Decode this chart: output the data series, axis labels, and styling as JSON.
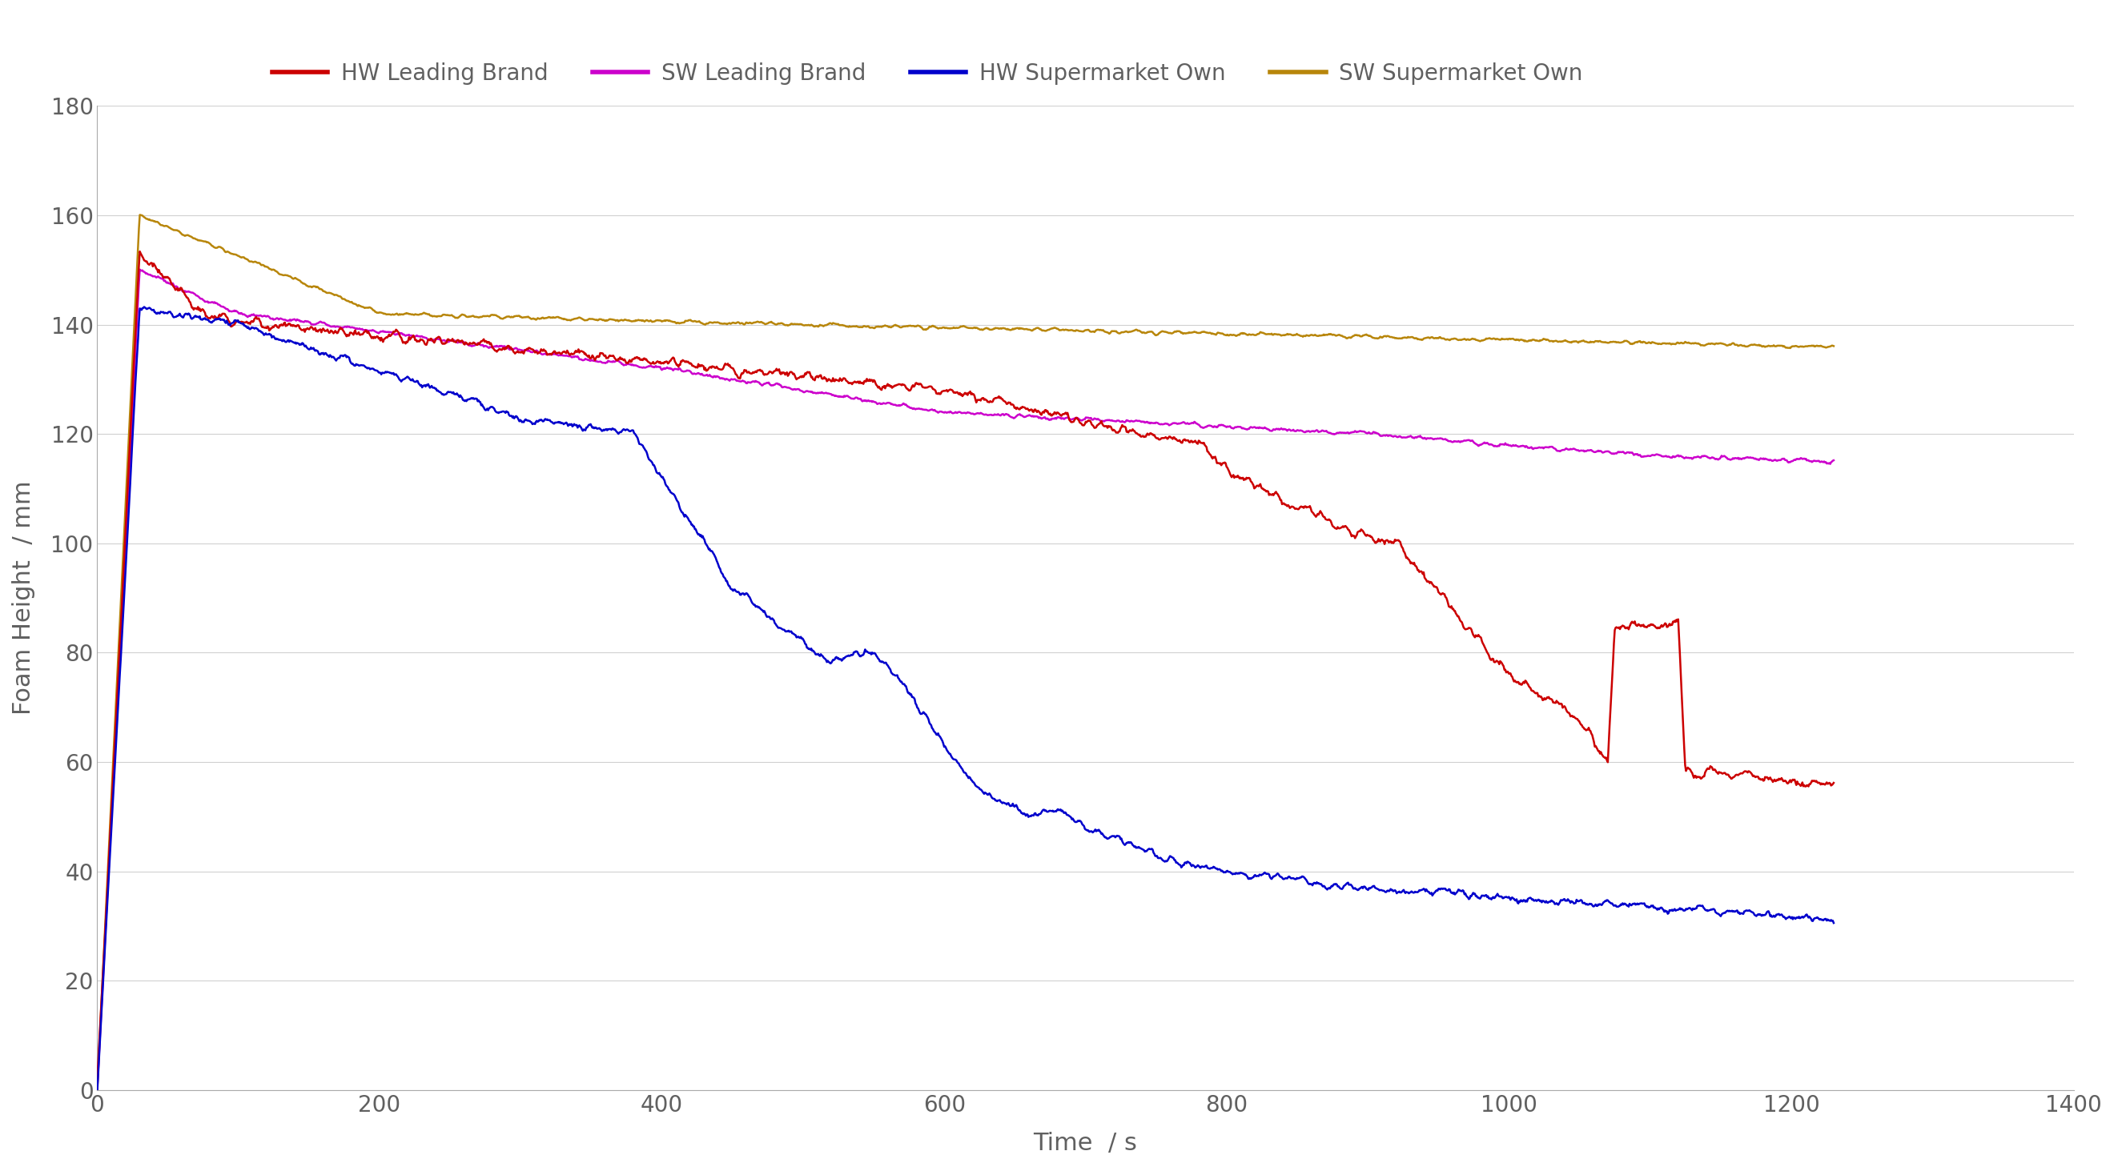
{
  "title": "",
  "xlabel": "Time  / s",
  "ylabel": "Foam Height  / mm",
  "xlim": [
    0,
    1400
  ],
  "ylim": [
    0,
    180
  ],
  "xticks": [
    0,
    200,
    400,
    600,
    800,
    1000,
    1200,
    1400
  ],
  "yticks": [
    0,
    20,
    40,
    60,
    80,
    100,
    120,
    140,
    160,
    180
  ],
  "background_color": "#ffffff",
  "grid_color": "#d0d0d0",
  "legend": [
    {
      "label": "HW Leading Brand",
      "color": "#cc0000"
    },
    {
      "label": "SW Leading Brand",
      "color": "#cc00cc"
    },
    {
      "label": "HW Supermarket Own",
      "color": "#0000cc"
    },
    {
      "label": "SW Supermarket Own",
      "color": "#b8860b"
    }
  ]
}
